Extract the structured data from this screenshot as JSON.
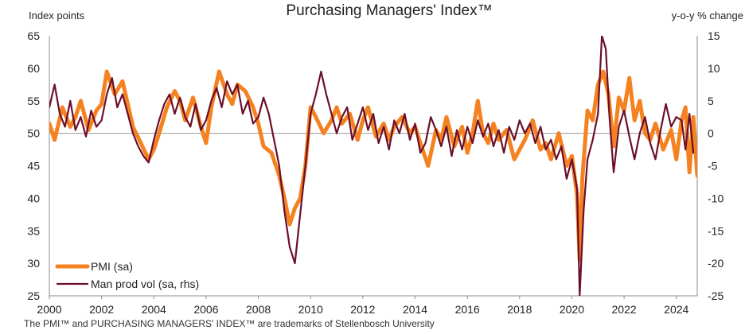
{
  "chart_data": {
    "type": "line",
    "title": "Purchasing Managers' Index™",
    "ylabel_left": "Index points",
    "ylabel_right": "y-o-y % change",
    "ylim_left": [
      25,
      65
    ],
    "ylim_right": [
      -25,
      15
    ],
    "yticks_left": [
      "65",
      "60",
      "55",
      "50",
      "45",
      "40",
      "35",
      "30",
      "25"
    ],
    "yticks_right": [
      "15",
      "10",
      "5",
      "0",
      "-5",
      "-10",
      "-15",
      "-20",
      "-25"
    ],
    "xlim": [
      2000,
      2024.8
    ],
    "xticks": [
      "2000",
      "2002",
      "2004",
      "2006",
      "2008",
      "2010",
      "2012",
      "2014",
      "2016",
      "2018",
      "2020",
      "2022",
      "2024"
    ],
    "reference_line": 50,
    "legend_position": "bottom-left",
    "series": [
      {
        "name": "PMI (sa)",
        "axis": "left",
        "color": "#F58220",
        "points": [
          [
            2000.0,
            51.5
          ],
          [
            2000.2,
            49.0
          ],
          [
            2000.5,
            54.0
          ],
          [
            2000.8,
            51.0
          ],
          [
            2001.0,
            52.5
          ],
          [
            2001.2,
            55.0
          ],
          [
            2001.5,
            50.5
          ],
          [
            2001.8,
            53.5
          ],
          [
            2002.0,
            54.5
          ],
          [
            2002.2,
            59.5
          ],
          [
            2002.5,
            56.0
          ],
          [
            2002.8,
            58.0
          ],
          [
            2003.0,
            54.5
          ],
          [
            2003.2,
            51.0
          ],
          [
            2003.5,
            48.5
          ],
          [
            2003.8,
            46.0
          ],
          [
            2004.0,
            47.5
          ],
          [
            2004.2,
            50.0
          ],
          [
            2004.5,
            54.0
          ],
          [
            2004.8,
            56.5
          ],
          [
            2005.0,
            55.0
          ],
          [
            2005.2,
            52.0
          ],
          [
            2005.5,
            55.5
          ],
          [
            2005.8,
            51.0
          ],
          [
            2006.0,
            48.5
          ],
          [
            2006.2,
            54.0
          ],
          [
            2006.5,
            59.5
          ],
          [
            2006.8,
            56.0
          ],
          [
            2007.0,
            54.5
          ],
          [
            2007.2,
            57.5
          ],
          [
            2007.5,
            56.5
          ],
          [
            2007.8,
            54.0
          ],
          [
            2008.0,
            51.5
          ],
          [
            2008.2,
            48.0
          ],
          [
            2008.5,
            47.0
          ],
          [
            2008.8,
            43.5
          ],
          [
            2009.0,
            40.0
          ],
          [
            2009.2,
            36.0
          ],
          [
            2009.4,
            38.5
          ],
          [
            2009.6,
            40.0
          ],
          [
            2009.8,
            45.0
          ],
          [
            2010.0,
            54.0
          ],
          [
            2010.2,
            52.5
          ],
          [
            2010.5,
            50.0
          ],
          [
            2010.8,
            52.0
          ],
          [
            2011.0,
            54.0
          ],
          [
            2011.2,
            51.5
          ],
          [
            2011.5,
            53.0
          ],
          [
            2011.8,
            49.0
          ],
          [
            2012.0,
            52.0
          ],
          [
            2012.2,
            54.0
          ],
          [
            2012.5,
            49.5
          ],
          [
            2012.8,
            51.5
          ],
          [
            2013.0,
            49.0
          ],
          [
            2013.2,
            51.0
          ],
          [
            2013.5,
            52.5
          ],
          [
            2013.8,
            50.0
          ],
          [
            2014.0,
            51.0
          ],
          [
            2014.2,
            48.5
          ],
          [
            2014.5,
            45.0
          ],
          [
            2014.8,
            50.5
          ],
          [
            2015.0,
            49.0
          ],
          [
            2015.2,
            52.5
          ],
          [
            2015.5,
            48.0
          ],
          [
            2015.8,
            51.0
          ],
          [
            2016.0,
            47.0
          ],
          [
            2016.2,
            50.0
          ],
          [
            2016.4,
            55.0
          ],
          [
            2016.6,
            50.0
          ],
          [
            2016.8,
            48.5
          ],
          [
            2017.0,
            51.5
          ],
          [
            2017.2,
            49.0
          ],
          [
            2017.5,
            50.5
          ],
          [
            2017.8,
            46.0
          ],
          [
            2018.0,
            47.5
          ],
          [
            2018.2,
            49.0
          ],
          [
            2018.5,
            52.0
          ],
          [
            2018.8,
            47.5
          ],
          [
            2019.0,
            48.5
          ],
          [
            2019.2,
            46.0
          ],
          [
            2019.5,
            50.0
          ],
          [
            2019.8,
            45.0
          ],
          [
            2020.0,
            46.5
          ],
          [
            2020.2,
            40.5
          ],
          [
            2020.3,
            30.5
          ],
          [
            2020.4,
            43.0
          ],
          [
            2020.6,
            53.5
          ],
          [
            2020.8,
            52.0
          ],
          [
            2021.0,
            57.5
          ],
          [
            2021.2,
            59.5
          ],
          [
            2021.4,
            56.0
          ],
          [
            2021.6,
            48.0
          ],
          [
            2021.8,
            55.5
          ],
          [
            2022.0,
            53.5
          ],
          [
            2022.2,
            58.5
          ],
          [
            2022.4,
            52.0
          ],
          [
            2022.6,
            55.0
          ],
          [
            2022.8,
            50.0
          ],
          [
            2023.0,
            49.0
          ],
          [
            2023.2,
            51.5
          ],
          [
            2023.5,
            47.5
          ],
          [
            2023.8,
            50.5
          ],
          [
            2024.0,
            46.0
          ],
          [
            2024.2,
            52.0
          ],
          [
            2024.35,
            54.0
          ],
          [
            2024.5,
            44.0
          ],
          [
            2024.65,
            52.5
          ],
          [
            2024.8,
            43.5
          ]
        ]
      },
      {
        "name": "Man prod vol (sa, rhs)",
        "axis": "right",
        "color": "#6B0F2A",
        "points": [
          [
            2000.0,
            4.0
          ],
          [
            2000.2,
            7.5
          ],
          [
            2000.4,
            3.0
          ],
          [
            2000.6,
            1.0
          ],
          [
            2000.8,
            5.0
          ],
          [
            2001.0,
            0.5
          ],
          [
            2001.2,
            2.5
          ],
          [
            2001.4,
            -0.5
          ],
          [
            2001.6,
            3.5
          ],
          [
            2001.8,
            1.0
          ],
          [
            2002.0,
            2.0
          ],
          [
            2002.2,
            6.0
          ],
          [
            2002.4,
            8.5
          ],
          [
            2002.6,
            4.0
          ],
          [
            2002.8,
            6.0
          ],
          [
            2003.0,
            3.0
          ],
          [
            2003.2,
            0.0
          ],
          [
            2003.4,
            -2.0
          ],
          [
            2003.6,
            -3.5
          ],
          [
            2003.8,
            -4.5
          ],
          [
            2004.0,
            -1.0
          ],
          [
            2004.2,
            2.0
          ],
          [
            2004.4,
            4.5
          ],
          [
            2004.6,
            6.0
          ],
          [
            2004.8,
            3.0
          ],
          [
            2005.0,
            5.5
          ],
          [
            2005.2,
            2.5
          ],
          [
            2005.4,
            1.0
          ],
          [
            2005.6,
            4.5
          ],
          [
            2005.8,
            0.5
          ],
          [
            2006.0,
            2.0
          ],
          [
            2006.2,
            5.0
          ],
          [
            2006.4,
            7.0
          ],
          [
            2006.6,
            4.0
          ],
          [
            2006.8,
            8.0
          ],
          [
            2007.0,
            6.0
          ],
          [
            2007.2,
            7.5
          ],
          [
            2007.4,
            3.0
          ],
          [
            2007.6,
            5.0
          ],
          [
            2007.8,
            1.5
          ],
          [
            2008.0,
            2.5
          ],
          [
            2008.2,
            5.5
          ],
          [
            2008.4,
            3.0
          ],
          [
            2008.6,
            -1.0
          ],
          [
            2008.8,
            -5.0
          ],
          [
            2009.0,
            -12.0
          ],
          [
            2009.2,
            -17.5
          ],
          [
            2009.4,
            -20.0
          ],
          [
            2009.6,
            -12.5
          ],
          [
            2009.8,
            -5.0
          ],
          [
            2010.0,
            3.0
          ],
          [
            2010.2,
            6.0
          ],
          [
            2010.4,
            9.5
          ],
          [
            2010.6,
            6.0
          ],
          [
            2010.8,
            3.0
          ],
          [
            2011.0,
            0.0
          ],
          [
            2011.2,
            2.5
          ],
          [
            2011.4,
            4.0
          ],
          [
            2011.6,
            -1.0
          ],
          [
            2011.8,
            1.5
          ],
          [
            2012.0,
            4.0
          ],
          [
            2012.2,
            0.5
          ],
          [
            2012.4,
            3.0
          ],
          [
            2012.6,
            -1.5
          ],
          [
            2012.8,
            1.0
          ],
          [
            2013.0,
            -2.5
          ],
          [
            2013.2,
            2.0
          ],
          [
            2013.4,
            0.0
          ],
          [
            2013.6,
            3.0
          ],
          [
            2013.8,
            -1.0
          ],
          [
            2014.0,
            1.5
          ],
          [
            2014.2,
            -3.0
          ],
          [
            2014.4,
            -1.5
          ],
          [
            2014.6,
            2.5
          ],
          [
            2014.8,
            0.5
          ],
          [
            2015.0,
            -2.0
          ],
          [
            2015.2,
            1.0
          ],
          [
            2015.4,
            -3.5
          ],
          [
            2015.6,
            0.5
          ],
          [
            2015.8,
            -2.5
          ],
          [
            2016.0,
            1.0
          ],
          [
            2016.2,
            -1.5
          ],
          [
            2016.4,
            2.0
          ],
          [
            2016.6,
            -0.5
          ],
          [
            2016.8,
            1.5
          ],
          [
            2017.0,
            -2.0
          ],
          [
            2017.2,
            0.5
          ],
          [
            2017.4,
            -3.0
          ],
          [
            2017.6,
            1.0
          ],
          [
            2017.8,
            -1.0
          ],
          [
            2018.0,
            2.0
          ],
          [
            2018.2,
            0.0
          ],
          [
            2018.4,
            1.5
          ],
          [
            2018.6,
            -1.5
          ],
          [
            2018.8,
            1.0
          ],
          [
            2019.0,
            -2.5
          ],
          [
            2019.2,
            -1.0
          ],
          [
            2019.4,
            -4.0
          ],
          [
            2019.6,
            -2.0
          ],
          [
            2019.8,
            -7.0
          ],
          [
            2020.0,
            -4.0
          ],
          [
            2020.2,
            -8.5
          ],
          [
            2020.3,
            -25.0
          ],
          [
            2020.45,
            -12.0
          ],
          [
            2020.6,
            -4.0
          ],
          [
            2020.8,
            -1.0
          ],
          [
            2021.0,
            3.0
          ],
          [
            2021.15,
            15.0
          ],
          [
            2021.3,
            13.0
          ],
          [
            2021.45,
            2.0
          ],
          [
            2021.6,
            -6.0
          ],
          [
            2021.8,
            1.0
          ],
          [
            2022.0,
            3.5
          ],
          [
            2022.2,
            -0.5
          ],
          [
            2022.4,
            -4.0
          ],
          [
            2022.6,
            0.0
          ],
          [
            2022.8,
            2.5
          ],
          [
            2023.0,
            -1.5
          ],
          [
            2023.2,
            -4.0
          ],
          [
            2023.4,
            0.5
          ],
          [
            2023.6,
            4.5
          ],
          [
            2023.8,
            1.0
          ],
          [
            2024.0,
            2.5
          ],
          [
            2024.2,
            2.0
          ],
          [
            2024.35,
            -2.5
          ],
          [
            2024.5,
            3.0
          ],
          [
            2024.65,
            -3.0
          ]
        ]
      }
    ],
    "footnote": "The PMI™ and PURCHASING MANAGERS' INDEX™ are trademarks of Stellenbosch University"
  }
}
